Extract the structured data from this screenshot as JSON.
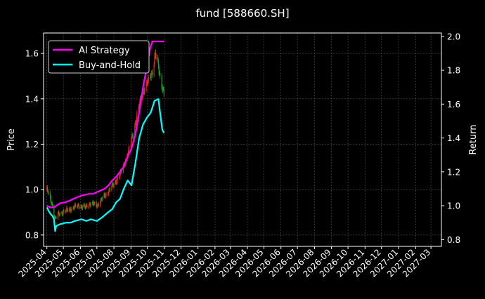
{
  "chart_data": {
    "type": "line",
    "title": "fund [588660.SH]",
    "ylabel": "Price",
    "y2label": "Return",
    "ylim": [
      0.75,
      1.69
    ],
    "y2lim": [
      0.76,
      2.02
    ],
    "xlim": [
      "2025-03-26",
      "2027-03-20"
    ],
    "yticks": [
      "0.8",
      "1.0",
      "1.2",
      "1.4",
      "1.6"
    ],
    "y2ticks": [
      "0.8",
      "1.0",
      "1.2",
      "1.4",
      "1.6",
      "1.8",
      "2.0"
    ],
    "x_ticks": [
      "2025-04",
      "2025-05",
      "2025-06",
      "2025-07",
      "2025-08",
      "2025-09",
      "2025-10",
      "2025-11",
      "2025-12",
      "2026-01",
      "2026-02",
      "2026-03",
      "2026-04",
      "2026-05",
      "2026-06",
      "2026-07",
      "2026-08",
      "2026-09",
      "2026-10",
      "2026-11",
      "2026-12",
      "2027-01",
      "2027-02",
      "2027-03"
    ],
    "grid": true,
    "legend_position": "top-left",
    "colors": {
      "background": "#000000",
      "ai_strategy": "#ff00ff",
      "buy_and_hold": "#00ffff",
      "candle_up": "#e8201c",
      "candle_down": "#20a020",
      "grid": "#555555",
      "text": "#ffffff"
    },
    "series": [
      {
        "name": "AI Strategy",
        "axis": "right",
        "points": [
          [
            "2025-04-01",
            1.0
          ],
          [
            "2025-04-07",
            0.99
          ],
          [
            "2025-04-14",
            0.99
          ],
          [
            "2025-04-18",
            1.0
          ],
          [
            "2025-04-25",
            1.015
          ],
          [
            "2025-05-05",
            1.02
          ],
          [
            "2025-05-12",
            1.03
          ],
          [
            "2025-05-19",
            1.04
          ],
          [
            "2025-05-26",
            1.05
          ],
          [
            "2025-06-03",
            1.06
          ],
          [
            "2025-06-10",
            1.065
          ],
          [
            "2025-06-17",
            1.07
          ],
          [
            "2025-06-24",
            1.07
          ],
          [
            "2025-07-01",
            1.08
          ],
          [
            "2025-07-08",
            1.09
          ],
          [
            "2025-07-15",
            1.1
          ],
          [
            "2025-07-22",
            1.12
          ],
          [
            "2025-07-29",
            1.15
          ],
          [
            "2025-08-05",
            1.17
          ],
          [
            "2025-08-12",
            1.2
          ],
          [
            "2025-08-19",
            1.23
          ],
          [
            "2025-08-26",
            1.29
          ],
          [
            "2025-09-02",
            1.34
          ],
          [
            "2025-09-09",
            1.42
          ],
          [
            "2025-09-16",
            1.55
          ],
          [
            "2025-09-23",
            1.7
          ],
          [
            "2025-09-30",
            1.82
          ],
          [
            "2025-10-06",
            1.93
          ],
          [
            "2025-10-10",
            1.97
          ],
          [
            "2025-10-20",
            1.97
          ],
          [
            "2025-10-31",
            1.97
          ]
        ]
      },
      {
        "name": "Buy-and-Hold",
        "axis": "right",
        "points": [
          [
            "2025-04-01",
            0.99
          ],
          [
            "2025-04-04",
            0.97
          ],
          [
            "2025-04-08",
            0.95
          ],
          [
            "2025-04-11",
            0.94
          ],
          [
            "2025-04-14",
            0.92
          ],
          [
            "2025-04-16",
            0.85
          ],
          [
            "2025-04-18",
            0.88
          ],
          [
            "2025-04-24",
            0.89
          ],
          [
            "2025-05-06",
            0.9
          ],
          [
            "2025-05-14",
            0.9
          ],
          [
            "2025-05-22",
            0.91
          ],
          [
            "2025-06-03",
            0.92
          ],
          [
            "2025-06-12",
            0.91
          ],
          [
            "2025-06-20",
            0.92
          ],
          [
            "2025-07-01",
            0.91
          ],
          [
            "2025-07-10",
            0.93
          ],
          [
            "2025-07-21",
            0.96
          ],
          [
            "2025-07-29",
            0.98
          ],
          [
            "2025-08-05",
            1.02
          ],
          [
            "2025-08-12",
            1.04
          ],
          [
            "2025-08-19",
            1.1
          ],
          [
            "2025-08-26",
            1.15
          ],
          [
            "2025-09-02",
            1.12
          ],
          [
            "2025-09-09",
            1.25
          ],
          [
            "2025-09-16",
            1.4
          ],
          [
            "2025-09-23",
            1.48
          ],
          [
            "2025-09-30",
            1.52
          ],
          [
            "2025-10-07",
            1.55
          ],
          [
            "2025-10-14",
            1.62
          ],
          [
            "2025-10-21",
            1.63
          ],
          [
            "2025-10-24",
            1.55
          ],
          [
            "2025-10-28",
            1.45
          ],
          [
            "2025-10-31",
            1.43
          ]
        ]
      },
      {
        "name": "Price",
        "axis": "left",
        "points": [
          [
            "2025-04-01",
            1.0
          ],
          [
            "2025-04-07",
            0.96
          ],
          [
            "2025-04-11",
            0.93
          ],
          [
            "2025-04-16",
            0.87
          ],
          [
            "2025-04-21",
            0.89
          ],
          [
            "2025-04-29",
            0.9
          ],
          [
            "2025-05-09",
            0.91
          ],
          [
            "2025-05-19",
            0.92
          ],
          [
            "2025-05-29",
            0.93
          ],
          [
            "2025-06-09",
            0.92
          ],
          [
            "2025-06-19",
            0.94
          ],
          [
            "2025-07-01",
            0.93
          ],
          [
            "2025-07-11",
            0.96
          ],
          [
            "2025-07-21",
            0.99
          ],
          [
            "2025-07-31",
            1.02
          ],
          [
            "2025-08-08",
            1.05
          ],
          [
            "2025-08-15",
            1.08
          ],
          [
            "2025-08-22",
            1.13
          ],
          [
            "2025-08-29",
            1.18
          ],
          [
            "2025-09-05",
            1.25
          ],
          [
            "2025-09-12",
            1.33
          ],
          [
            "2025-09-19",
            1.4
          ],
          [
            "2025-09-26",
            1.45
          ],
          [
            "2025-10-03",
            1.48
          ],
          [
            "2025-10-10",
            1.52
          ],
          [
            "2025-10-15",
            1.6
          ],
          [
            "2025-10-20",
            1.55
          ],
          [
            "2025-10-25",
            1.48
          ],
          [
            "2025-10-31",
            1.43
          ]
        ]
      }
    ]
  }
}
